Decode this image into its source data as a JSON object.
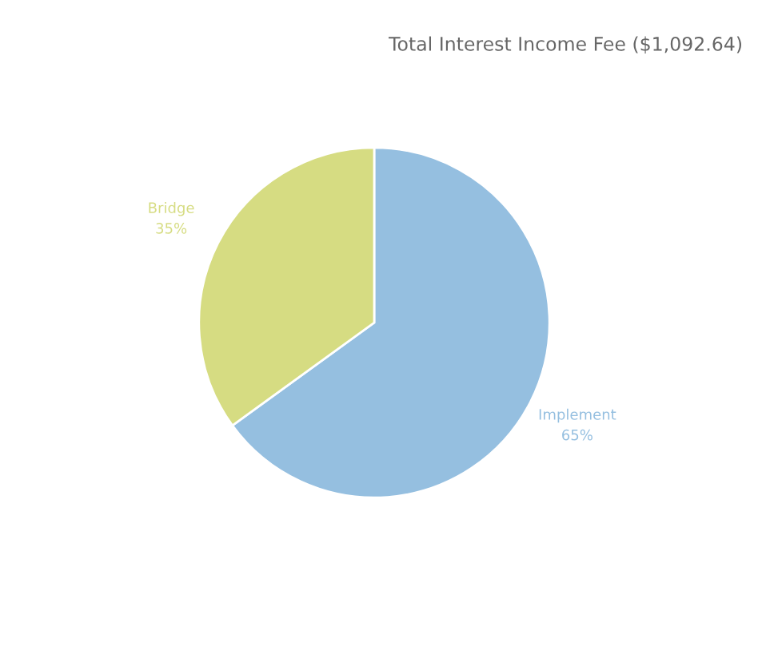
{
  "chart_data": {
    "type": "pie",
    "title": "Total Interest Income Fee ($1,092.64)",
    "categories": [
      "Implement",
      "Bridge"
    ],
    "values": [
      65,
      35
    ],
    "colors": [
      "#95bfe0",
      "#d6dc82"
    ],
    "value_labels": [
      "65%",
      "35%"
    ],
    "legend": false
  }
}
